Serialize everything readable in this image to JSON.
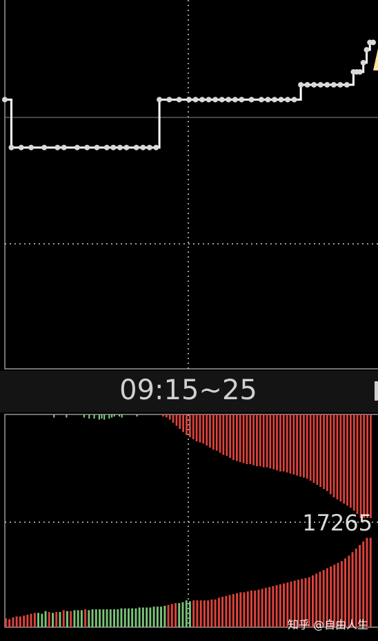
{
  "time_window_label": "09:15~25",
  "watermark": "知乎 @自由人生",
  "colors": {
    "background": "#000000",
    "price_line": "#ffffff",
    "price_marker": "#d8d8d8",
    "up_bar": "#e0433d",
    "down_bar": "#7bc47a",
    "grid": "#cfcfcf",
    "divider_band": "#141414",
    "far_right_marker": "#ffe0a0"
  },
  "chart_data": [
    {
      "type": "line",
      "description_type": "call-auction price (step line with markers)",
      "x_unit": "auction tick index",
      "ylim": [
        0,
        100
      ],
      "y_axis_labels": [],
      "grid": "dotted, one vertical center line and one horizontal mid line",
      "series": [
        {
          "values": [
            [
              0,
              73.0
            ],
            [
              2,
              60.0
            ],
            [
              5,
              60.0
            ],
            [
              8,
              60.0
            ],
            [
              12,
              60.0
            ],
            [
              16,
              60.0
            ],
            [
              18,
              60.0
            ],
            [
              22,
              60.0
            ],
            [
              25,
              60.0
            ],
            [
              28,
              60.0
            ],
            [
              31,
              60.0
            ],
            [
              33,
              60.0
            ],
            [
              35,
              60.0
            ],
            [
              37,
              60.0
            ],
            [
              40,
              60.0
            ],
            [
              42,
              60.0
            ],
            [
              44,
              60.0
            ],
            [
              46,
              60.0
            ],
            [
              47,
              73.0
            ],
            [
              50,
              73.0
            ],
            [
              53,
              73.0
            ],
            [
              56,
              73.0
            ],
            [
              58,
              73.0
            ],
            [
              60,
              73.0
            ],
            [
              62,
              73.0
            ],
            [
              64,
              73.0
            ],
            [
              66,
              73.0
            ],
            [
              68,
              73.0
            ],
            [
              70,
              73.0
            ],
            [
              72,
              73.0
            ],
            [
              75,
              73.0
            ],
            [
              78,
              73.0
            ],
            [
              80,
              73.0
            ],
            [
              82,
              73.0
            ],
            [
              84,
              73.0
            ],
            [
              86,
              73.0
            ],
            [
              88,
              73.0
            ],
            [
              90,
              77.0
            ],
            [
              92,
              77.0
            ],
            [
              94,
              77.0
            ],
            [
              96,
              77.0
            ],
            [
              98,
              77.0
            ],
            [
              100,
              77.0
            ],
            [
              102,
              77.0
            ],
            [
              104,
              77.0
            ],
            [
              106,
              80.5
            ],
            [
              107,
              80.5
            ],
            [
              108,
              80.5
            ],
            [
              109,
              83.0
            ],
            [
              110,
              86.5
            ],
            [
              111,
              88.5
            ],
            [
              112,
              88.5
            ]
          ]
        }
      ]
    },
    {
      "type": "bar",
      "description_type": "auction volume bars (mirrored from top and bottom)",
      "x_unit": "auction tick index",
      "annotations": [
        "17265"
      ],
      "grid": "dotted, one vertical center line and one horizontal mid line",
      "top_bars_up_share": [
        0,
        0,
        0,
        0,
        0,
        0,
        0,
        0,
        0,
        0,
        0,
        0,
        0,
        0,
        0,
        0,
        0,
        0,
        0,
        0,
        0,
        0,
        0,
        0,
        0,
        0,
        0,
        0,
        0,
        0,
        0,
        0,
        0,
        0,
        0,
        0,
        0,
        0,
        0,
        0,
        0,
        0,
        0,
        0,
        0,
        0,
        0,
        0.02,
        0.03,
        0.05,
        0.08,
        0.11,
        0.14,
        0.17,
        0.2,
        0.22,
        0.24,
        0.26,
        0.27,
        0.28,
        0.3,
        0.32,
        0.34,
        0.35,
        0.37,
        0.39,
        0.4,
        0.42,
        0.44,
        0.45,
        0.46,
        0.47,
        0.48,
        0.48,
        0.49,
        0.5,
        0.5,
        0.51,
        0.51,
        0.52,
        0.53,
        0.54,
        0.55,
        0.55,
        0.56,
        0.57,
        0.58,
        0.59,
        0.6,
        0.61,
        0.62,
        0.64,
        0.66,
        0.68,
        0.7,
        0.72,
        0.74,
        0.77,
        0.8,
        0.82,
        0.84,
        0.86,
        0.88,
        0.9,
        0.93,
        0.96,
        1.0,
        1.0,
        1.0,
        1.0
      ],
      "top_bars_down_share": [
        0,
        0,
        0,
        0,
        0,
        0,
        0,
        0,
        0,
        0,
        0,
        0.03,
        0,
        0,
        0,
        0,
        0.03,
        0,
        0,
        0,
        0,
        0,
        0,
        0.03,
        0,
        0.04,
        0,
        0.04,
        0,
        0.05,
        0.04,
        0.05,
        0,
        0.04,
        0.03,
        0.02,
        0,
        0.02,
        0.03,
        0,
        0,
        0,
        0,
        0,
        0.02,
        0,
        0,
        0,
        0,
        0,
        0,
        0,
        0,
        0,
        0,
        0,
        0,
        0,
        0,
        0,
        0,
        0
      ],
      "bottom_bars": [
        {
          "v": 0.1,
          "c": "up"
        },
        {
          "v": 0.09,
          "c": "up"
        },
        {
          "v": 0.11,
          "c": "up"
        },
        {
          "v": 0.12,
          "c": "up"
        },
        {
          "v": 0.12,
          "c": "up"
        },
        {
          "v": 0.13,
          "c": "up"
        },
        {
          "v": 0.14,
          "c": "up"
        },
        {
          "v": 0.15,
          "c": "up"
        },
        {
          "v": 0.16,
          "c": "up"
        },
        {
          "v": 0.16,
          "c": "down"
        },
        {
          "v": 0.15,
          "c": "down"
        },
        {
          "v": 0.18,
          "c": "down"
        },
        {
          "v": 0.17,
          "c": "up"
        },
        {
          "v": 0.16,
          "c": "down"
        },
        {
          "v": 0.17,
          "c": "up"
        },
        {
          "v": 0.17,
          "c": "down"
        },
        {
          "v": 0.19,
          "c": "up"
        },
        {
          "v": 0.18,
          "c": "down"
        },
        {
          "v": 0.18,
          "c": "up"
        },
        {
          "v": 0.19,
          "c": "down"
        },
        {
          "v": 0.19,
          "c": "down"
        },
        {
          "v": 0.19,
          "c": "down"
        },
        {
          "v": 0.2,
          "c": "up"
        },
        {
          "v": 0.19,
          "c": "down"
        },
        {
          "v": 0.2,
          "c": "down"
        },
        {
          "v": 0.2,
          "c": "down"
        },
        {
          "v": 0.2,
          "c": "down"
        },
        {
          "v": 0.2,
          "c": "down"
        },
        {
          "v": 0.2,
          "c": "down"
        },
        {
          "v": 0.2,
          "c": "down"
        },
        {
          "v": 0.2,
          "c": "down"
        },
        {
          "v": 0.2,
          "c": "down"
        },
        {
          "v": 0.21,
          "c": "down"
        },
        {
          "v": 0.21,
          "c": "down"
        },
        {
          "v": 0.21,
          "c": "down"
        },
        {
          "v": 0.21,
          "c": "down"
        },
        {
          "v": 0.21,
          "c": "down"
        },
        {
          "v": 0.22,
          "c": "down"
        },
        {
          "v": 0.22,
          "c": "down"
        },
        {
          "v": 0.22,
          "c": "down"
        },
        {
          "v": 0.22,
          "c": "down"
        },
        {
          "v": 0.23,
          "c": "down"
        },
        {
          "v": 0.23,
          "c": "down"
        },
        {
          "v": 0.23,
          "c": "down"
        },
        {
          "v": 0.24,
          "c": "down"
        },
        {
          "v": 0.25,
          "c": "up"
        },
        {
          "v": 0.26,
          "c": "up"
        },
        {
          "v": 0.27,
          "c": "up"
        },
        {
          "v": 0.27,
          "c": "down"
        },
        {
          "v": 0.28,
          "c": "down"
        },
        {
          "v": 0.3,
          "c": "down"
        },
        {
          "v": 0.29,
          "c": "down"
        },
        {
          "v": 0.3,
          "c": "up"
        },
        {
          "v": 0.3,
          "c": "up"
        },
        {
          "v": 0.3,
          "c": "up"
        },
        {
          "v": 0.3,
          "c": "up"
        },
        {
          "v": 0.3,
          "c": "up"
        },
        {
          "v": 0.31,
          "c": "up"
        },
        {
          "v": 0.31,
          "c": "up"
        },
        {
          "v": 0.33,
          "c": "up"
        },
        {
          "v": 0.34,
          "c": "up"
        },
        {
          "v": 0.35,
          "c": "up"
        },
        {
          "v": 0.36,
          "c": "up"
        },
        {
          "v": 0.37,
          "c": "up"
        },
        {
          "v": 0.38,
          "c": "up"
        },
        {
          "v": 0.39,
          "c": "up"
        },
        {
          "v": 0.39,
          "c": "up"
        },
        {
          "v": 0.4,
          "c": "up"
        },
        {
          "v": 0.41,
          "c": "up"
        },
        {
          "v": 0.41,
          "c": "up"
        },
        {
          "v": 0.42,
          "c": "up"
        },
        {
          "v": 0.43,
          "c": "up"
        },
        {
          "v": 0.44,
          "c": "up"
        },
        {
          "v": 0.45,
          "c": "up"
        },
        {
          "v": 0.46,
          "c": "up"
        },
        {
          "v": 0.47,
          "c": "up"
        },
        {
          "v": 0.48,
          "c": "up"
        },
        {
          "v": 0.49,
          "c": "up"
        },
        {
          "v": 0.5,
          "c": "up"
        },
        {
          "v": 0.51,
          "c": "up"
        },
        {
          "v": 0.52,
          "c": "up"
        },
        {
          "v": 0.53,
          "c": "up"
        },
        {
          "v": 0.54,
          "c": "up"
        },
        {
          "v": 0.55,
          "c": "up"
        },
        {
          "v": 0.56,
          "c": "up"
        },
        {
          "v": 0.58,
          "c": "up"
        },
        {
          "v": 0.6,
          "c": "up"
        },
        {
          "v": 0.62,
          "c": "up"
        },
        {
          "v": 0.64,
          "c": "up"
        },
        {
          "v": 0.66,
          "c": "up"
        },
        {
          "v": 0.68,
          "c": "up"
        },
        {
          "v": 0.7,
          "c": "up"
        },
        {
          "v": 0.72,
          "c": "up"
        },
        {
          "v": 0.74,
          "c": "up"
        },
        {
          "v": 0.77,
          "c": "up"
        },
        {
          "v": 0.8,
          "c": "up"
        },
        {
          "v": 0.84,
          "c": "up"
        },
        {
          "v": 0.88,
          "c": "up"
        },
        {
          "v": 0.92,
          "c": "up"
        },
        {
          "v": 0.96,
          "c": "up"
        },
        {
          "v": 1.0,
          "c": "up"
        },
        {
          "v": 1.0,
          "c": "up"
        }
      ]
    }
  ]
}
